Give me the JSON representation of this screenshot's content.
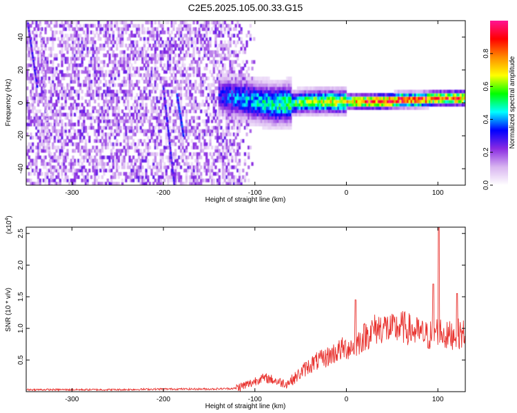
{
  "figure": {
    "title": "C2E5.2025.105.00.33.G15"
  },
  "chart_data": [
    {
      "type": "heatmap",
      "xlabel": "Height of straight line (km)",
      "ylabel": "Frequency (Hz)",
      "xlim": [
        -350,
        130
      ],
      "ylim": [
        -50,
        50
      ],
      "xticks": [
        -300,
        -200,
        -100,
        0,
        100
      ],
      "yticks": [
        -40,
        -20,
        0,
        20,
        40
      ],
      "colorbar": {
        "label": "Normalized spectral amplitude",
        "range": [
          0.0,
          1.0
        ],
        "ticks": [
          0.0,
          0.2,
          0.4,
          0.6,
          0.8
        ],
        "tick_labels": [
          "0.0",
          "0.2",
          "0.4",
          "0.6",
          "0.8"
        ],
        "colors": [
          "#ffffff",
          "#d8b4f0",
          "#8a2be2",
          "#0000ff",
          "#00ffff",
          "#00ff00",
          "#ffff00",
          "#ff8c00",
          "#ff0000",
          "#ff1493"
        ]
      },
      "ridge": {
        "x": [
          -140,
          -120,
          -100,
          -80,
          -60,
          -40,
          -20,
          0,
          20,
          40,
          60,
          80,
          100,
          120,
          130
        ],
        "frequency": [
          5,
          3,
          1,
          -1,
          0,
          1,
          1,
          1,
          1,
          1,
          2,
          2,
          3,
          3,
          3
        ],
        "amplitude": [
          0.3,
          0.4,
          0.45,
          0.5,
          0.55,
          0.6,
          0.65,
          0.7,
          0.85,
          0.9,
          0.95,
          0.9,
          0.8,
          0.85,
          0.8
        ]
      },
      "noise_region": {
        "x_start": -350,
        "x_end": -120,
        "amplitude": 0.15
      },
      "streaks": [
        {
          "x_start": -348,
          "x_end": -338,
          "y_start": 48,
          "y_end": 10,
          "amplitude": 0.25
        },
        {
          "x_start": -335,
          "x_end": -322,
          "y_start": 50,
          "y_end": -50,
          "amplitude": 0.12
        },
        {
          "x_start": -200,
          "x_end": -188,
          "y_start": 10,
          "y_end": -50,
          "amplitude": 0.25
        },
        {
          "x_start": -185,
          "x_end": -178,
          "y_start": 5,
          "y_end": -20,
          "amplitude": 0.3
        }
      ]
    },
    {
      "type": "line",
      "xlabel": "Height of straight line (km)",
      "ylabel": "SNR (10 * v/v)",
      "y_multiplier_label": "(x10",
      "y_multiplier_exp": "4",
      "xlim": [
        -350,
        130
      ],
      "ylim": [
        0,
        2.6
      ],
      "xticks": [
        -300,
        -200,
        -100,
        0,
        100
      ],
      "yticks": [
        0.5,
        1.0,
        1.5,
        2.0,
        2.5
      ],
      "ytick_labels": [
        "0.5",
        "1.0",
        "1.5",
        "2.0",
        "2.5"
      ],
      "color": "#e8302c",
      "series": [
        {
          "x": [
            -350,
            -300,
            -250,
            -200,
            -150,
            -120,
            -105,
            -95,
            -85,
            -75,
            -65,
            -55,
            -45,
            -35,
            -25,
            -15,
            -5,
            8,
            12,
            20,
            30,
            40,
            50,
            60,
            70,
            80,
            90,
            100,
            110,
            120,
            130
          ],
          "y": [
            0.03,
            0.03,
            0.03,
            0.04,
            0.04,
            0.05,
            0.12,
            0.2,
            0.2,
            0.15,
            0.12,
            0.22,
            0.35,
            0.45,
            0.5,
            0.58,
            0.65,
            0.7,
            0.75,
            0.85,
            0.95,
            1.0,
            0.95,
            1.0,
            0.95,
            0.9,
            0.85,
            0.95,
            0.85,
            0.9,
            0.88
          ],
          "peaks": [
            {
              "x": 10,
              "y": 1.45
            },
            {
              "x": 95,
              "y": 1.7
            },
            {
              "x": 101,
              "y": 2.6
            },
            {
              "x": 121,
              "y": 1.55
            }
          ]
        }
      ]
    }
  ]
}
